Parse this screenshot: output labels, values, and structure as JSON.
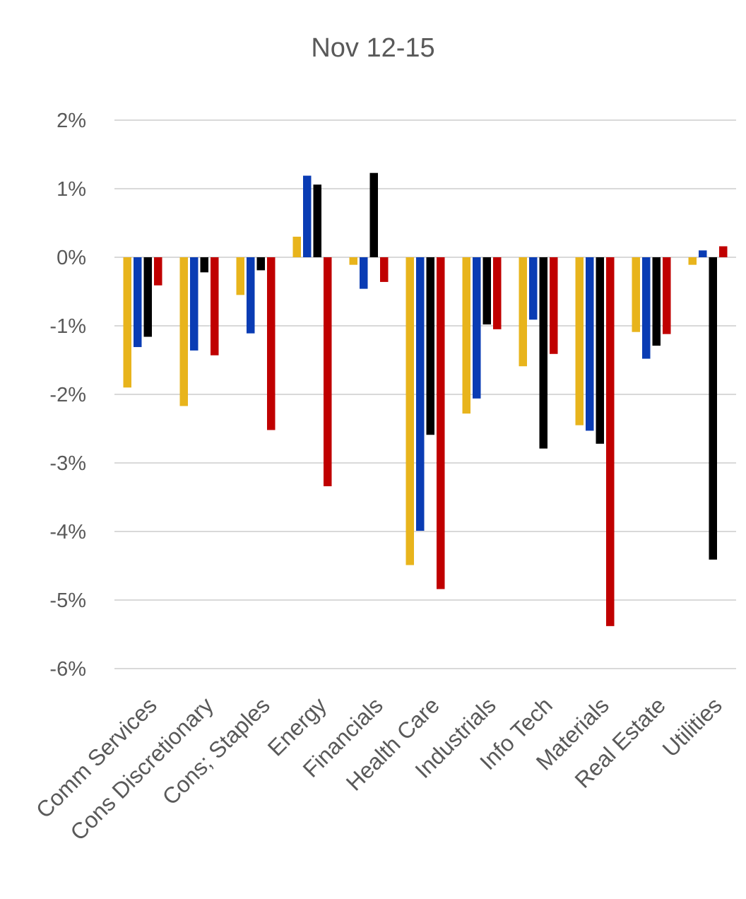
{
  "chart_data": {
    "type": "bar",
    "title": "Nov 12-15",
    "xlabel": "",
    "ylabel": "",
    "ylim": [
      -6,
      2
    ],
    "yticks": [
      2,
      1,
      0,
      -1,
      -2,
      -3,
      -4,
      -5,
      -6
    ],
    "ytick_labels": [
      "2%",
      "1%",
      "0%",
      "-1%",
      "-2%",
      "-3%",
      "-4%",
      "-5%",
      "-6%"
    ],
    "grid": true,
    "legend": "none",
    "categories": [
      "Comm Services",
      "Cons Discretionary",
      "Cons; Staples",
      "Energy",
      "Financials",
      "Health Care",
      "Industrials",
      "Info Tech",
      "Materials",
      "Real Estate",
      "Utilities"
    ],
    "series": [
      {
        "color": "#E8B41C",
        "values": [
          -1.9,
          -2.17,
          -0.55,
          0.3,
          -0.11,
          -4.49,
          -2.28,
          -1.59,
          -2.45,
          -1.09,
          -0.11
        ]
      },
      {
        "color": "#0A3CB4",
        "values": [
          -1.31,
          -1.36,
          -1.11,
          1.19,
          -0.46,
          -3.99,
          -2.06,
          -0.91,
          -2.53,
          -1.48,
          0.1
        ]
      },
      {
        "color": "#000000",
        "values": [
          -1.16,
          -0.22,
          -0.19,
          1.06,
          1.23,
          -2.59,
          -0.98,
          -2.79,
          -2.72,
          -1.29,
          -4.41
        ]
      },
      {
        "color": "#C00000",
        "values": [
          -0.41,
          -1.43,
          -2.52,
          -3.34,
          -0.36,
          -4.84,
          -1.05,
          -1.41,
          -5.38,
          -1.12,
          0.16
        ]
      }
    ]
  }
}
